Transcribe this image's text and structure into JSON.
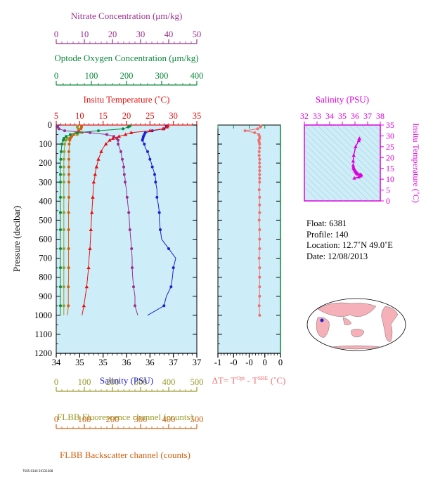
{
  "colors": {
    "nitrate": "#9b2f8e",
    "oxygen": "#0a8a3a",
    "temperature": "#e81010",
    "salinity": "#1f1fd0",
    "fluorescence": "#9a9a2a",
    "backscatter": "#d06010",
    "deltaT": "#f07070",
    "magenta": "#dd00dd",
    "panel_bg": "#cdeef8"
  },
  "axes": {
    "nitrate": {
      "label": "Nitrate Concentration (μm/kg)",
      "ticks": [
        "0",
        "10",
        "20",
        "30",
        "40",
        "50"
      ]
    },
    "oxygen": {
      "label": "Optode Oxygen Concentration (μm/kg)",
      "ticks": [
        "0",
        "100",
        "200",
        "300",
        "400"
      ]
    },
    "temperature": {
      "label": "Insitu Temperature (˚C)",
      "ticks": [
        "5",
        "10",
        "15",
        "20",
        "25",
        "30",
        "35"
      ]
    },
    "pressure": {
      "label": "Pressure (decibar)",
      "ticks": [
        "0",
        "100",
        "200",
        "300",
        "400",
        "500",
        "600",
        "700",
        "800",
        "900",
        "1000",
        "1100",
        "1200"
      ]
    },
    "salinity": {
      "label": "Salinity (PSU)",
      "ticks": [
        "34",
        "35",
        "35",
        "36",
        "36",
        "37",
        "37"
      ]
    },
    "fluorescence": {
      "label": "FLBB Fluorescence channel (counts)",
      "ticks": [
        "0",
        "100",
        "200",
        "300",
        "400",
        "500"
      ]
    },
    "backscatter": {
      "label": "FLBB Backscatter channel (counts)",
      "ticks": [
        "0",
        "100",
        "200",
        "300",
        "400",
        "500"
      ]
    },
    "delta_t": {
      "label_main": "ΔT= T",
      "label_sup1": "Opt",
      "label_mid": " - T",
      "label_sup2": "SBE",
      "label_end": " (˚C)",
      "ticks": [
        "-1",
        "-0",
        "-0",
        "0",
        "0"
      ]
    },
    "ts_salinity": {
      "label": "Salinity (PSU)",
      "ticks": [
        "32",
        "33",
        "34",
        "35",
        "36",
        "37",
        "38"
      ]
    },
    "ts_temperature": {
      "label": "Insitu Temperature (˚C)",
      "ticks": [
        "0",
        "5",
        "10",
        "15",
        "20",
        "25",
        "30",
        "35"
      ]
    }
  },
  "info": {
    "float": "Float:  6381",
    "profile": "Profile:  140",
    "location": "Location:  12.7˚N  49.0˚E",
    "date": "Date:  12/08/2013"
  },
  "stamp": "7505.0140 20131208",
  "chart_data": [
    {
      "type": "line",
      "name": "profile",
      "pressure_range": [
        0,
        1200
      ],
      "temperature_range": [
        5,
        35
      ],
      "salinity_range": [
        34,
        37
      ],
      "nitrate_range": [
        0,
        50
      ],
      "oxygen_range": [
        0,
        400
      ],
      "fluorescence_range": [
        0,
        500
      ],
      "backscatter_range": [
        0,
        500
      ],
      "pressure": [
        5,
        10,
        20,
        30,
        40,
        50,
        60,
        70,
        80,
        90,
        100,
        120,
        140,
        160,
        180,
        200,
        220,
        240,
        260,
        280,
        300,
        340,
        380,
        420,
        460,
        500,
        550,
        600,
        650,
        700,
        750,
        800,
        850,
        900,
        950,
        1000
      ],
      "temperature": [
        28.8,
        28.6,
        27.8,
        25.0,
        21.0,
        19.8,
        18.4,
        17.1,
        16.4,
        16.0,
        15.6,
        15.0,
        14.6,
        14.3,
        14.0,
        13.8,
        13.6,
        13.4,
        13.3,
        13.2,
        13.0,
        12.9,
        12.8,
        12.7,
        12.6,
        12.5,
        12.4,
        12.3,
        12.2,
        12.0,
        11.9,
        11.7,
        11.5,
        11.2,
        10.9,
        10.5
      ],
      "salinity": [
        36.35,
        36.35,
        36.3,
        36.05,
        35.9,
        35.88,
        35.86,
        35.85,
        35.84,
        35.86,
        35.88,
        35.9,
        35.95,
        35.98,
        36.0,
        36.03,
        36.05,
        36.08,
        36.1,
        36.12,
        36.12,
        36.15,
        36.15,
        36.18,
        36.2,
        36.2,
        36.22,
        36.25,
        36.4,
        36.55,
        36.5,
        36.48,
        36.45,
        36.35,
        36.3,
        35.95
      ],
      "nitrate": [
        0.5,
        0.5,
        1.0,
        3.0,
        12.0,
        18.0,
        20.5,
        21.5,
        22.0,
        22.0,
        22.0,
        22.5,
        23.0,
        23.2,
        23.5,
        23.8,
        24.0,
        24.0,
        24.2,
        24.5,
        24.5,
        25.0,
        25.2,
        25.5,
        25.8,
        26.0,
        26.2,
        26.5,
        26.8,
        27.0,
        27.0,
        27.2,
        27.5,
        28.0,
        28.0,
        29.0
      ],
      "oxygen": [
        210,
        205,
        190,
        120,
        60,
        40,
        28,
        22,
        20,
        18,
        16,
        15,
        14,
        13,
        13,
        12,
        12,
        12,
        12,
        12,
        12,
        12,
        12,
        12,
        12,
        12,
        12,
        12,
        12,
        12,
        12,
        12,
        12,
        12,
        12,
        12
      ],
      "fluorescence": [
        75,
        75,
        78,
        80,
        92,
        75,
        52,
        40,
        35,
        32,
        30,
        29,
        28,
        28,
        27,
        27,
        27,
        27,
        27,
        27,
        27,
        27,
        27,
        27,
        27,
        27,
        27,
        27,
        27,
        27,
        27,
        27,
        27,
        27,
        27,
        27
      ],
      "backscatter": [
        90,
        90,
        88,
        80,
        70,
        62,
        55,
        50,
        48,
        47,
        46,
        46,
        45,
        45,
        45,
        45,
        45,
        45,
        45,
        45,
        45,
        45,
        45,
        44,
        44,
        44,
        44,
        44,
        44,
        44,
        44,
        44,
        43,
        43,
        43,
        40
      ]
    },
    {
      "type": "line",
      "name": "delta_t",
      "x_range": [
        -1,
        0.5
      ],
      "pressure": [
        5,
        10,
        20,
        30,
        40,
        50,
        60,
        70,
        80,
        90,
        100,
        120,
        140,
        160,
        180,
        200,
        220,
        240,
        260,
        280,
        300,
        340,
        380,
        420,
        460,
        500,
        550,
        600,
        650,
        700,
        750,
        800,
        850,
        900,
        950,
        1000
      ],
      "values": [
        0.03,
        0.02,
        -0.05,
        -0.35,
        -0.12,
        -0.02,
        0.0,
        0.0,
        -0.02,
        -0.01,
        0.0,
        0.0,
        -0.01,
        -0.01,
        0.0,
        0.0,
        0.0,
        0.0,
        0.0,
        0.0,
        0.0,
        -0.01,
        0.0,
        0.0,
        0.0,
        -0.01,
        0.0,
        0.0,
        0.0,
        -0.01,
        0.0,
        0.0,
        0.0,
        0.0,
        -0.01,
        0.0
      ]
    },
    {
      "type": "scatter",
      "name": "ts_diagram",
      "x_range": [
        32,
        38
      ],
      "y_range": [
        0,
        35
      ],
      "salinity": [
        36.35,
        36.35,
        36.3,
        36.05,
        35.9,
        35.86,
        35.86,
        35.88,
        35.9,
        35.95,
        36.0,
        36.05,
        36.1,
        36.12,
        36.15,
        36.2,
        36.25,
        36.4,
        36.5,
        36.45,
        36.3,
        35.95
      ],
      "temperature": [
        28.8,
        28.6,
        27.8,
        25.0,
        21.0,
        18.4,
        16.4,
        15.6,
        15.0,
        14.6,
        14.0,
        13.6,
        13.3,
        13.0,
        12.8,
        12.5,
        12.3,
        12.2,
        12.0,
        11.5,
        11.0,
        10.5
      ]
    }
  ],
  "map": {
    "marker_lat": 12.7,
    "marker_lon": 49.0
  }
}
